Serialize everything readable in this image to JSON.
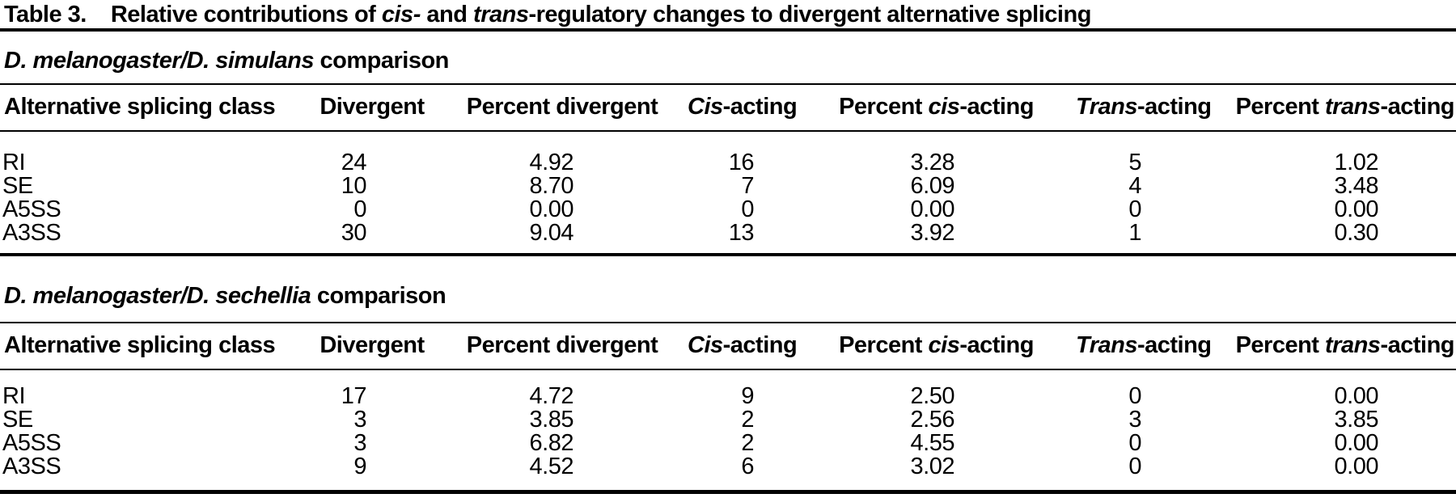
{
  "title": {
    "label": "Table 3.",
    "seg1": "Relative contributions of ",
    "seg2_italic": "cis-",
    "seg3": " and ",
    "seg4_italic": "trans",
    "seg5": "-regulatory changes to divergent alternative splicing"
  },
  "columns": [
    {
      "pre": "Alternative splicing class",
      "it": "",
      "post": ""
    },
    {
      "pre": "Divergent",
      "it": "",
      "post": ""
    },
    {
      "pre": "Percent divergent",
      "it": "",
      "post": ""
    },
    {
      "pre": "",
      "it": "Cis",
      "post": "-acting"
    },
    {
      "pre": "Percent ",
      "it": "cis",
      "post": "-acting"
    },
    {
      "pre": "",
      "it": "Trans",
      "post": "-acting"
    },
    {
      "pre": "Percent ",
      "it": "trans",
      "post": "-acting"
    }
  ],
  "sections": [
    {
      "heading_italic": "D. melanogaster/D. simulans",
      "heading_rest": " comparison",
      "rows": [
        {
          "cls": "RI",
          "divergent": "24",
          "pct_divergent": "4.92",
          "cis": "16",
          "pct_cis": "3.28",
          "trans": "5",
          "pct_trans": "1.02"
        },
        {
          "cls": "SE",
          "divergent": "10",
          "pct_divergent": "8.70",
          "cis": "7",
          "pct_cis": "6.09",
          "trans": "4",
          "pct_trans": "3.48"
        },
        {
          "cls": "A5SS",
          "divergent": "0",
          "pct_divergent": "0.00",
          "cis": "0",
          "pct_cis": "0.00",
          "trans": "0",
          "pct_trans": "0.00"
        },
        {
          "cls": "A3SS",
          "divergent": "30",
          "pct_divergent": "9.04",
          "cis": "13",
          "pct_cis": "3.92",
          "trans": "1",
          "pct_trans": "0.30"
        }
      ]
    },
    {
      "heading_italic": "D. melanogaster/D. sechellia",
      "heading_rest": " comparison",
      "rows": [
        {
          "cls": "RI",
          "divergent": "17",
          "pct_divergent": "4.72",
          "cis": "9",
          "pct_cis": "2.50",
          "trans": "0",
          "pct_trans": "0.00"
        },
        {
          "cls": "SE",
          "divergent": "3",
          "pct_divergent": "3.85",
          "cis": "2",
          "pct_cis": "2.56",
          "trans": "3",
          "pct_trans": "3.85"
        },
        {
          "cls": "A5SS",
          "divergent": "3",
          "pct_divergent": "6.82",
          "cis": "2",
          "pct_cis": "4.55",
          "trans": "0",
          "pct_trans": "0.00"
        },
        {
          "cls": "A3SS",
          "divergent": "9",
          "pct_divergent": "4.52",
          "cis": "6",
          "pct_cis": "3.02",
          "trans": "0",
          "pct_trans": "0.00"
        }
      ]
    }
  ],
  "colors": {
    "text": "#000000",
    "rule": "#000000",
    "background": "#ffffff"
  }
}
